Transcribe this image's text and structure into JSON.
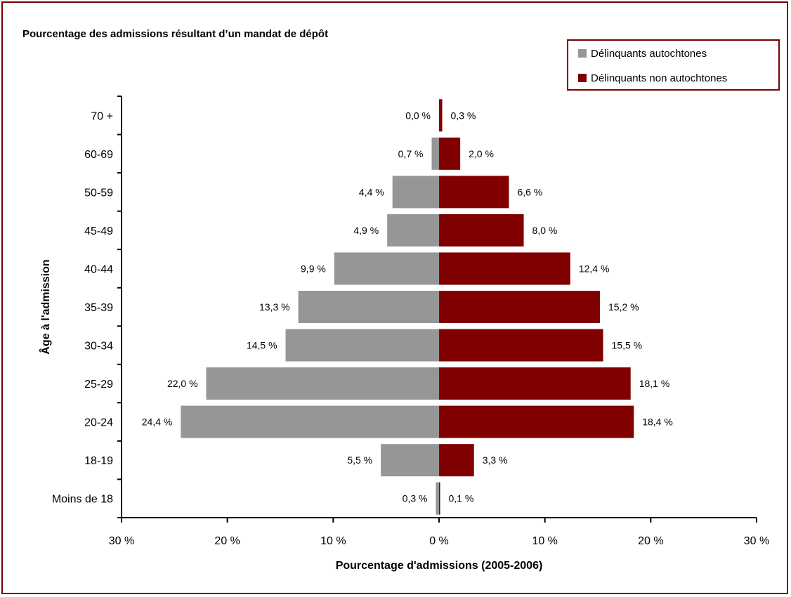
{
  "chart_data": {
    "type": "bar",
    "orientation": "horizontal",
    "layout": "population-pyramid",
    "title": "Pourcentage des admissions résultant d’un mandat de dépôt",
    "xlabel": "Pourcentage d'admissions (2005-2006)",
    "ylabel": "Âge à l'admission",
    "categories": [
      "70 +",
      "60-69",
      "50-59",
      "45-49",
      "40-44",
      "35-39",
      "30-34",
      "25-29",
      "20-24",
      "18-19",
      "Moins de 18"
    ],
    "series": [
      {
        "name": "Délinquants autochtones",
        "color": "#969696",
        "side": "left",
        "values": [
          0.0,
          0.7,
          4.4,
          4.9,
          9.9,
          13.3,
          14.5,
          22.0,
          24.4,
          5.5,
          0.3
        ],
        "labels": [
          "0,0 %",
          "0,7 %",
          "4,4 %",
          "4,9 %",
          "9,9 %",
          "13,3 %",
          "14,5 %",
          "22,0 %",
          "24,4 %",
          "5,5 %",
          "0,3 %"
        ]
      },
      {
        "name": "Délinquants non autochtones",
        "color": "#800000",
        "side": "right",
        "values": [
          0.3,
          2.0,
          6.6,
          8.0,
          12.4,
          15.2,
          15.5,
          18.1,
          18.4,
          3.3,
          0.1
        ],
        "labels": [
          "0,3 %",
          "2,0 %",
          "6,6 %",
          "8,0 %",
          "12,4 %",
          "15,2 %",
          "15,5 %",
          "18,1 %",
          "18,4 %",
          "3,3 %",
          "0,1 %"
        ]
      }
    ],
    "xlim": [
      -30,
      30
    ],
    "xticks": [
      -30,
      -20,
      -10,
      0,
      10,
      20,
      30
    ],
    "xtick_labels": [
      "30 %",
      "20 %",
      "10 %",
      "0 %",
      "10 %",
      "20 %",
      "30 %"
    ],
    "grid": false,
    "legend_position": "top-right"
  },
  "colors": {
    "border": "#7a0000",
    "axis": "#000000"
  }
}
